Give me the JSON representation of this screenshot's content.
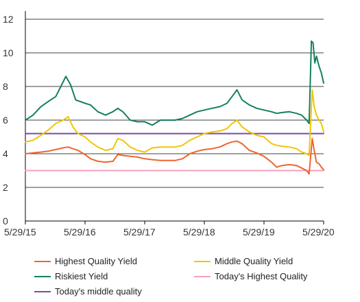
{
  "chart_data": {
    "type": "line",
    "title": "",
    "xlabel": "",
    "ylabel": "",
    "ylim": [
      0,
      12
    ],
    "yticks": [
      0,
      2,
      4,
      6,
      8,
      10,
      12
    ],
    "xlim": [
      "2015-05-29",
      "2020-05-29"
    ],
    "xtick_labels": [
      "5/29/15",
      "5/29/16",
      "5/29/17",
      "5/29/18",
      "5/29/19",
      "5/29/20"
    ],
    "grid": "horizontal",
    "legend_position": "bottom",
    "series": [
      {
        "name": "Highest Quality Yield",
        "color": "#F0642D",
        "points": [
          [
            "2015-05-29",
            4.0
          ],
          [
            "2015-07-15",
            4.05
          ],
          [
            "2015-09-01",
            4.1
          ],
          [
            "2015-10-15",
            4.15
          ],
          [
            "2015-12-01",
            4.25
          ],
          [
            "2016-01-15",
            4.35
          ],
          [
            "2016-02-15",
            4.4
          ],
          [
            "2016-03-15",
            4.3
          ],
          [
            "2016-04-15",
            4.2
          ],
          [
            "2016-05-29",
            3.95
          ],
          [
            "2016-07-01",
            3.7
          ],
          [
            "2016-08-15",
            3.55
          ],
          [
            "2016-10-01",
            3.5
          ],
          [
            "2016-11-15",
            3.55
          ],
          [
            "2016-12-15",
            3.95
          ],
          [
            "2017-01-15",
            3.9
          ],
          [
            "2017-03-01",
            3.85
          ],
          [
            "2017-04-15",
            3.8
          ],
          [
            "2017-05-29",
            3.7
          ],
          [
            "2017-07-15",
            3.65
          ],
          [
            "2017-09-01",
            3.6
          ],
          [
            "2017-10-15",
            3.6
          ],
          [
            "2017-12-01",
            3.6
          ],
          [
            "2018-01-15",
            3.7
          ],
          [
            "2018-03-01",
            4.0
          ],
          [
            "2018-04-15",
            4.15
          ],
          [
            "2018-05-29",
            4.25
          ],
          [
            "2018-07-15",
            4.3
          ],
          [
            "2018-09-01",
            4.4
          ],
          [
            "2018-10-15",
            4.6
          ],
          [
            "2018-11-15",
            4.7
          ],
          [
            "2018-12-15",
            4.75
          ],
          [
            "2019-01-15",
            4.6
          ],
          [
            "2019-03-01",
            4.2
          ],
          [
            "2019-04-15",
            4.05
          ],
          [
            "2019-05-29",
            3.85
          ],
          [
            "2019-07-15",
            3.5
          ],
          [
            "2019-08-15",
            3.2
          ],
          [
            "2019-09-15",
            3.3
          ],
          [
            "2019-11-01",
            3.35
          ],
          [
            "2019-12-15",
            3.3
          ],
          [
            "2020-01-15",
            3.15
          ],
          [
            "2020-02-15",
            3.0
          ],
          [
            "2020-03-01",
            2.8
          ],
          [
            "2020-03-20",
            4.9
          ],
          [
            "2020-04-01",
            4.2
          ],
          [
            "2020-04-15",
            3.5
          ],
          [
            "2020-05-01",
            3.4
          ],
          [
            "2020-05-15",
            3.2
          ],
          [
            "2020-05-29",
            3.05
          ]
        ]
      },
      {
        "name": "Middle Quality Yield",
        "color": "#F2C500",
        "points": [
          [
            "2015-05-29",
            4.7
          ],
          [
            "2015-07-15",
            4.8
          ],
          [
            "2015-09-01",
            5.1
          ],
          [
            "2015-10-15",
            5.4
          ],
          [
            "2015-12-01",
            5.8
          ],
          [
            "2016-01-15",
            6.0
          ],
          [
            "2016-02-15",
            6.2
          ],
          [
            "2016-03-15",
            5.6
          ],
          [
            "2016-04-15",
            5.2
          ],
          [
            "2016-05-29",
            5.0
          ],
          [
            "2016-07-01",
            4.7
          ],
          [
            "2016-08-15",
            4.4
          ],
          [
            "2016-10-01",
            4.2
          ],
          [
            "2016-11-15",
            4.3
          ],
          [
            "2016-12-15",
            4.9
          ],
          [
            "2017-01-15",
            4.8
          ],
          [
            "2017-03-01",
            4.4
          ],
          [
            "2017-04-15",
            4.2
          ],
          [
            "2017-05-29",
            4.1
          ],
          [
            "2017-07-15",
            4.35
          ],
          [
            "2017-09-01",
            4.4
          ],
          [
            "2017-10-15",
            4.4
          ],
          [
            "2017-12-01",
            4.4
          ],
          [
            "2018-01-15",
            4.5
          ],
          [
            "2018-03-01",
            4.8
          ],
          [
            "2018-04-15",
            5.0
          ],
          [
            "2018-05-29",
            5.2
          ],
          [
            "2018-07-15",
            5.3
          ],
          [
            "2018-09-01",
            5.35
          ],
          [
            "2018-10-15",
            5.5
          ],
          [
            "2018-11-15",
            5.8
          ],
          [
            "2018-12-15",
            6.0
          ],
          [
            "2019-01-15",
            5.6
          ],
          [
            "2019-03-01",
            5.3
          ],
          [
            "2019-04-15",
            5.1
          ],
          [
            "2019-05-29",
            5.0
          ],
          [
            "2019-07-15",
            4.6
          ],
          [
            "2019-08-15",
            4.5
          ],
          [
            "2019-09-15",
            4.45
          ],
          [
            "2019-11-01",
            4.4
          ],
          [
            "2019-12-15",
            4.3
          ],
          [
            "2020-01-15",
            4.1
          ],
          [
            "2020-02-15",
            4.0
          ],
          [
            "2020-03-01",
            3.9
          ],
          [
            "2020-03-20",
            7.8
          ],
          [
            "2020-04-01",
            6.8
          ],
          [
            "2020-04-15",
            6.3
          ],
          [
            "2020-05-01",
            6.0
          ],
          [
            "2020-05-15",
            5.8
          ],
          [
            "2020-05-29",
            5.3
          ]
        ]
      },
      {
        "name": "Riskiest Yield",
        "color": "#12805C",
        "points": [
          [
            "2015-05-29",
            6.0
          ],
          [
            "2015-07-15",
            6.3
          ],
          [
            "2015-09-01",
            6.8
          ],
          [
            "2015-10-15",
            7.1
          ],
          [
            "2015-12-01",
            7.4
          ],
          [
            "2016-01-01",
            8.0
          ],
          [
            "2016-02-01",
            8.6
          ],
          [
            "2016-03-01",
            8.1
          ],
          [
            "2016-04-01",
            7.2
          ],
          [
            "2016-05-29",
            7.0
          ],
          [
            "2016-07-01",
            6.9
          ],
          [
            "2016-08-15",
            6.5
          ],
          [
            "2016-10-01",
            6.3
          ],
          [
            "2016-11-15",
            6.5
          ],
          [
            "2016-12-15",
            6.7
          ],
          [
            "2017-01-15",
            6.5
          ],
          [
            "2017-03-01",
            6.0
          ],
          [
            "2017-04-15",
            5.9
          ],
          [
            "2017-05-29",
            5.9
          ],
          [
            "2017-07-15",
            5.7
          ],
          [
            "2017-09-01",
            6.0
          ],
          [
            "2017-10-15",
            6.0
          ],
          [
            "2017-12-01",
            6.0
          ],
          [
            "2018-01-15",
            6.1
          ],
          [
            "2018-03-01",
            6.3
          ],
          [
            "2018-04-15",
            6.5
          ],
          [
            "2018-05-29",
            6.6
          ],
          [
            "2018-07-15",
            6.7
          ],
          [
            "2018-09-01",
            6.8
          ],
          [
            "2018-10-15",
            7.0
          ],
          [
            "2018-11-15",
            7.4
          ],
          [
            "2018-12-15",
            7.8
          ],
          [
            "2019-01-15",
            7.2
          ],
          [
            "2019-03-01",
            6.9
          ],
          [
            "2019-04-15",
            6.7
          ],
          [
            "2019-05-29",
            6.6
          ],
          [
            "2019-07-15",
            6.5
          ],
          [
            "2019-08-15",
            6.4
          ],
          [
            "2019-09-15",
            6.45
          ],
          [
            "2019-11-01",
            6.5
          ],
          [
            "2019-12-15",
            6.4
          ],
          [
            "2020-01-15",
            6.3
          ],
          [
            "2020-02-15",
            6.0
          ],
          [
            "2020-03-01",
            5.8
          ],
          [
            "2020-03-15",
            10.7
          ],
          [
            "2020-03-25",
            10.6
          ],
          [
            "2020-04-05",
            9.4
          ],
          [
            "2020-04-15",
            9.8
          ],
          [
            "2020-05-01",
            9.2
          ],
          [
            "2020-05-15",
            8.8
          ],
          [
            "2020-05-29",
            8.2
          ]
        ]
      },
      {
        "name": "Today's Highest Quality",
        "color": "#F6A1BE",
        "points": [
          [
            "2015-05-29",
            3.0
          ],
          [
            "2020-05-29",
            3.0
          ]
        ]
      },
      {
        "name": "Today's middle quality",
        "color": "#7B49A8",
        "points": [
          [
            "2015-05-29",
            5.2
          ],
          [
            "2020-05-29",
            5.2
          ]
        ]
      }
    ]
  }
}
